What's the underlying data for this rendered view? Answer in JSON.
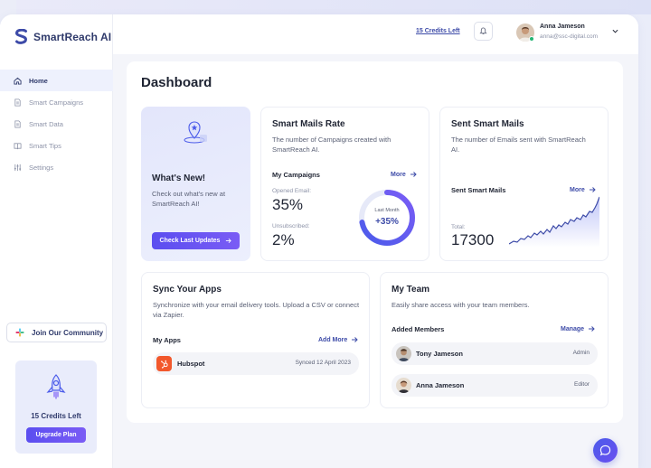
{
  "app": {
    "name": "SmartReach AI",
    "brand_color": "#3d4ba8",
    "accent_gradient": [
      "#5b4ef0",
      "#7a5cf5"
    ]
  },
  "sidebar": {
    "items": [
      {
        "label": "Home",
        "icon": "home-icon",
        "active": true
      },
      {
        "label": "Smart Campaigns",
        "icon": "document-icon",
        "active": false
      },
      {
        "label": "Smart Data",
        "icon": "document-icon",
        "active": false
      },
      {
        "label": "Smart Tips",
        "icon": "book-icon",
        "active": false
      },
      {
        "label": "Settings",
        "icon": "sliders-icon",
        "active": false
      }
    ],
    "community_label": "Join Our Community",
    "upgrade": {
      "credits": "15 Credits Left",
      "button": "Upgrade Plan"
    }
  },
  "topbar": {
    "credits_link": "15 Credits Left",
    "user": {
      "name": "Anna Jameson",
      "email": "anna@ssc-digital.com",
      "status_color": "#22b573"
    }
  },
  "dashboard": {
    "title": "Dashboard",
    "whats_new": {
      "title": "What's New!",
      "desc": "Check out what's new at SmartReach AI!",
      "button": "Check Last Updates"
    },
    "mails_rate": {
      "title": "Smart Mails Rate",
      "desc": "The number of Campaigns created with SmartReach AI.",
      "section": "My Campaigns",
      "more": "More",
      "opened_label": "Opened Email:",
      "opened_value": "35%",
      "unsub_label": "Unsubscribed:",
      "unsub_value": "2%",
      "donut_label": "Last Month",
      "donut_value": "+35%",
      "donut_fraction": 0.72
    },
    "sent_mails": {
      "title": "Sent Smart Mails",
      "desc": "The number of Emails sent with SmartReach AI.",
      "section": "Sent Smart Mails",
      "more": "More",
      "total_label": "Total:",
      "total_value": "17300"
    },
    "sync": {
      "title": "Sync Your Apps",
      "desc": "Synchronize with your email delivery tools. Upload a CSV or connect via Zapier.",
      "section": "My Apps",
      "add_more": "Add More",
      "apps": [
        {
          "name": "Hubspot",
          "status": "Synced 12 April 2023",
          "color": "#f2582c"
        }
      ]
    },
    "team": {
      "title": "My Team",
      "desc": "Easily share access with your team members.",
      "section": "Added Members",
      "manage": "Manage",
      "members": [
        {
          "name": "Tony Jameson",
          "role": "Admin"
        },
        {
          "name": "Anna Jameson",
          "role": "Editor"
        }
      ]
    }
  }
}
